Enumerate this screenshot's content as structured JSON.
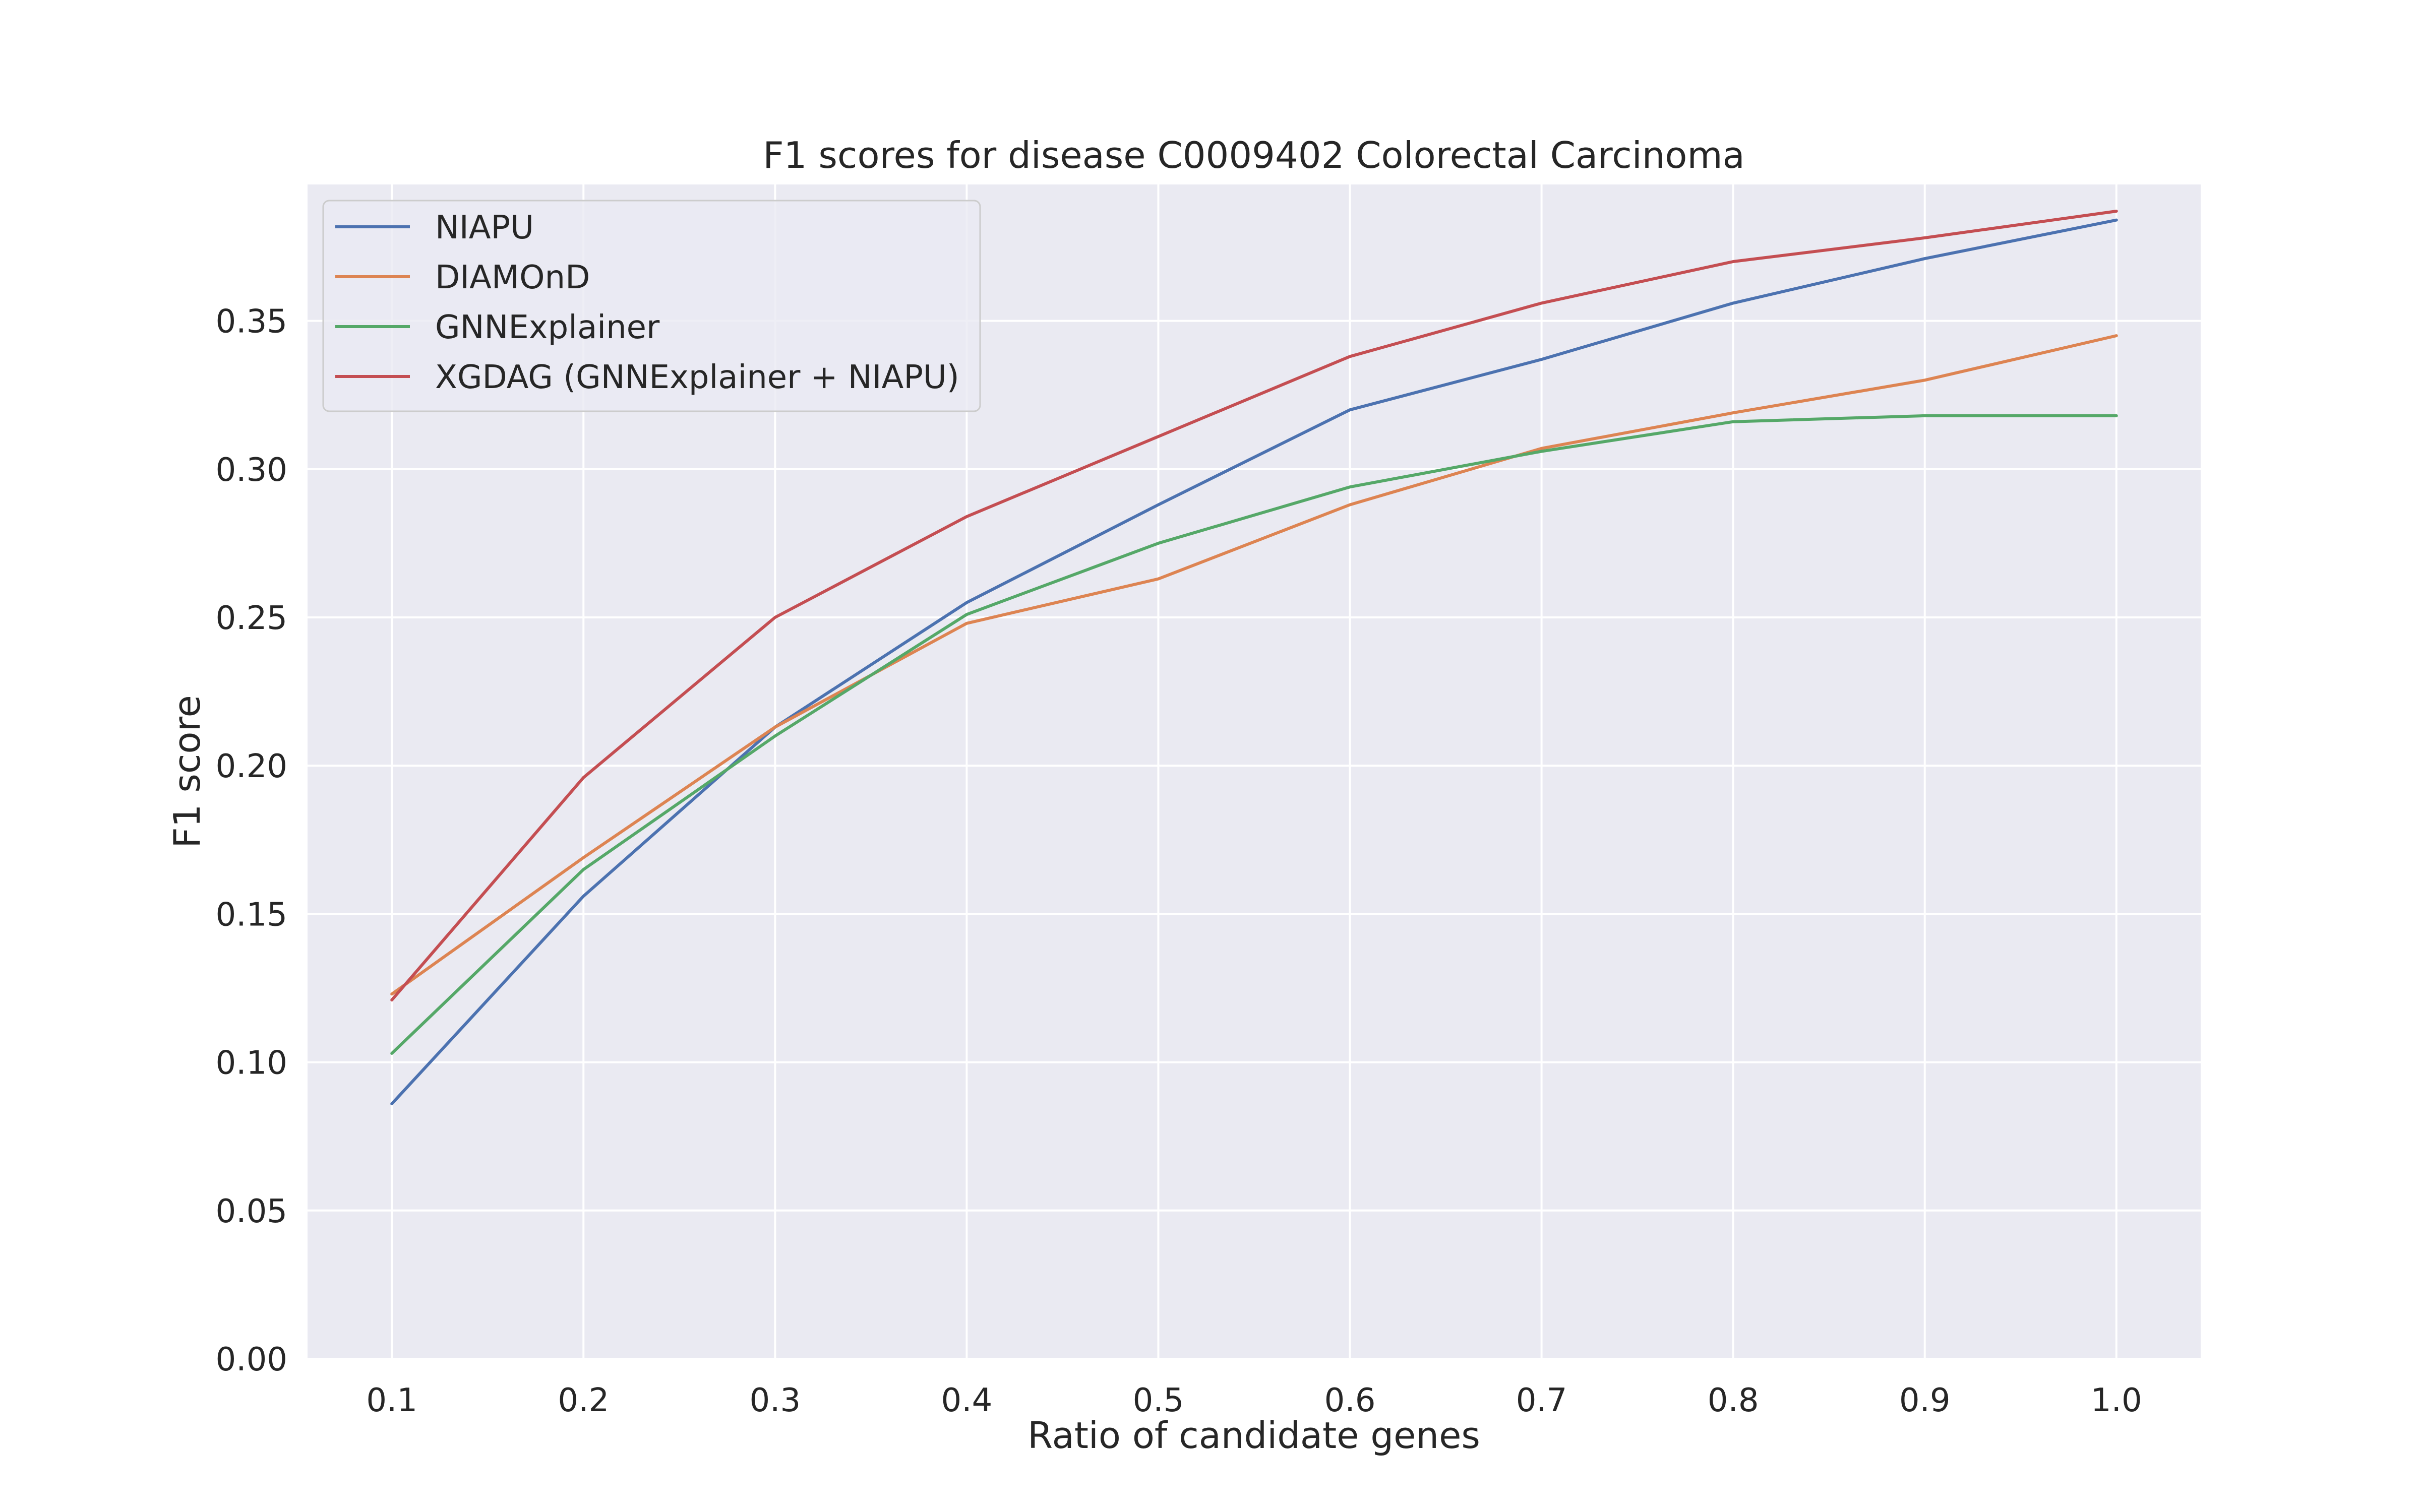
{
  "chart_data": {
    "type": "line",
    "title": "F1 scores for disease C0009402 Colorectal Carcinoma",
    "xlabel": "Ratio of candidate genes",
    "ylabel": "F1 score",
    "x": [
      0.1,
      0.2,
      0.3,
      0.4,
      0.5,
      0.6,
      0.7,
      0.8,
      0.9,
      1.0
    ],
    "x_ticks": [
      "0.1",
      "0.2",
      "0.3",
      "0.4",
      "0.5",
      "0.6",
      "0.7",
      "0.8",
      "0.9",
      "1.0"
    ],
    "y_ticks": [
      "0.00",
      "0.05",
      "0.10",
      "0.15",
      "0.20",
      "0.25",
      "0.30",
      "0.35"
    ],
    "xlim": [
      0.056,
      1.044
    ],
    "ylim": [
      0.0,
      0.396
    ],
    "grid": true,
    "legend_position": "upper-left",
    "series": [
      {
        "name": "NIAPU",
        "color": "#4c72b0",
        "values": [
          0.086,
          0.156,
          0.213,
          0.255,
          0.288,
          0.32,
          0.337,
          0.356,
          0.371,
          0.384
        ]
      },
      {
        "name": "DIAMOnD",
        "color": "#dd8452",
        "values": [
          0.123,
          0.169,
          0.213,
          0.248,
          0.263,
          0.288,
          0.307,
          0.319,
          0.33,
          0.345
        ]
      },
      {
        "name": "GNNExplainer",
        "color": "#55a868",
        "values": [
          0.103,
          0.165,
          0.21,
          0.251,
          0.275,
          0.294,
          0.306,
          0.316,
          0.318,
          0.318
        ]
      },
      {
        "name": "XGDAG (GNNExplainer + NIAPU)",
        "color": "#c44e52",
        "values": [
          0.121,
          0.196,
          0.25,
          0.284,
          0.311,
          0.338,
          0.356,
          0.37,
          0.378,
          0.387
        ]
      }
    ]
  }
}
